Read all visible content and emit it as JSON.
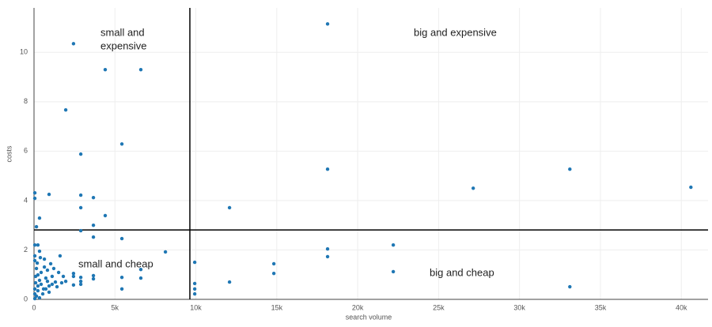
{
  "chart_data": {
    "type": "scatter",
    "x_label": "search volume",
    "y_label": "costs",
    "x": [
      2440,
      18140,
      4400,
      6600,
      1960,
      2890,
      5430,
      18140,
      33110,
      27140,
      40590,
      12080,
      50,
      50,
      930,
      2890,
      3670,
      2890,
      340,
      4400,
      3670,
      150,
      2890,
      3670,
      5430,
      22200,
      18140,
      18140,
      8120,
      9930,
      14820,
      14820,
      22200,
      12080,
      9930,
      9930,
      9930,
      33110,
      6600,
      6600,
      5430,
      5430,
      3670,
      3670,
      2890,
      2890,
      2890,
      2440,
      2440,
      2440,
      1610,
      1960,
      50,
      240,
      340,
      50,
      150,
      240,
      340,
      440,
      590,
      50,
      150,
      50,
      240,
      440,
      640,
      830,
      1030,
      1120,
      1320,
      730,
      930,
      540,
      240,
      100,
      100,
      200,
      390,
      50,
      640,
      1120,
      1420,
      1710,
      730,
      930,
      340,
      50,
      830,
      1220,
      1520,
      1810
    ],
    "values": [
      10.35,
      11.15,
      9.3,
      9.3,
      7.67,
      5.88,
      6.29,
      5.27,
      5.27,
      4.5,
      4.54,
      3.71,
      4.31,
      4.09,
      4.25,
      4.22,
      4.12,
      3.71,
      3.29,
      3.39,
      3.0,
      2.94,
      2.78,
      2.52,
      2.46,
      2.2,
      2.04,
      1.73,
      1.92,
      1.5,
      1.44,
      1.05,
      1.12,
      0.7,
      0.64,
      0.42,
      0.22,
      0.51,
      1.21,
      0.86,
      0.89,
      0.42,
      0.96,
      0.83,
      0.89,
      0.73,
      0.61,
      1.05,
      0.93,
      0.58,
      1.76,
      0.73,
      2.2,
      2.2,
      1.95,
      1.57,
      1.25,
      0.99,
      0.77,
      0.61,
      0.42,
      0.22,
      0.13,
      0.03,
      0.35,
      1.09,
      1.31,
      1.18,
      1.44,
      0.93,
      0.7,
      0.86,
      0.54,
      0.22,
      0.54,
      0.67,
      0.93,
      1.47,
      1.69,
      1.76,
      1.63,
      0.61,
      0.51,
      0.67,
      0.42,
      0.29,
      0.06,
      0.42,
      0.73,
      1.25,
      1.09,
      0.93
    ],
    "color": "#1f77b4",
    "xlim": [
      0,
      41650
    ],
    "ylim": [
      0,
      11.8
    ],
    "xticks": [
      0,
      {
        "value": 5000,
        "label": "5k"
      },
      {
        "value": 10000,
        "label": "10k"
      },
      {
        "value": 15000,
        "label": "15k"
      },
      {
        "value": 20000,
        "label": "20k"
      },
      {
        "value": 25000,
        "label": "25k"
      },
      {
        "value": 30000,
        "label": "30k"
      },
      {
        "value": 35000,
        "label": "35k"
      },
      {
        "value": 40000,
        "label": "40k"
      }
    ],
    "yticks": [
      0,
      2,
      4,
      6,
      8,
      10
    ],
    "grid": true,
    "reference_lines": {
      "x": 9630,
      "y": 2.81
    },
    "annotations": [
      [
        "small and",
        "expensive"
      ],
      [
        "big and expensive"
      ],
      [
        "small and cheap"
      ],
      [
        "big and cheap"
      ]
    ]
  }
}
